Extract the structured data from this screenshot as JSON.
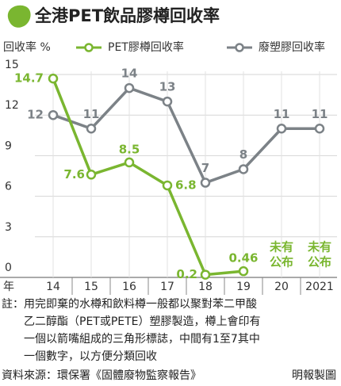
{
  "chart_data": {
    "type": "line",
    "title": "全港PET飲品膠樽回收率",
    "y_label": "回收率 %",
    "x_label": "年",
    "categories": [
      "14",
      "15",
      "16",
      "17",
      "18",
      "19",
      "20",
      "2021"
    ],
    "series": [
      {
        "name": "PET膠樽回收率",
        "color": "#7ab630",
        "values": [
          14.7,
          7.6,
          8.5,
          6.8,
          0.2,
          0.46,
          null,
          null
        ]
      },
      {
        "name": "廢塑膠回收率",
        "color": "#7c8287",
        "values": [
          12,
          11,
          14,
          13,
          7,
          8,
          11,
          11
        ]
      }
    ],
    "annotations": [
      [
        "未有",
        "公布"
      ],
      [
        "未有",
        "公布"
      ]
    ],
    "ylim": [
      0,
      15
    ],
    "yticks": [
      0,
      3,
      6,
      9,
      12,
      15
    ],
    "grid": true,
    "note": [
      "註：用完即棄的水樽和飲料樽一般都以聚對苯二甲酸",
      "乙二醇酯（PET或PETE）塑膠製造，樽上會印有",
      "一個以箭嘴組成的三角形標誌，中間有1至7其中",
      "一個數字，以方便分類回收"
    ],
    "source": "資料來源：環保署《固體廢物監察報告》",
    "credit": "明報製圖"
  }
}
